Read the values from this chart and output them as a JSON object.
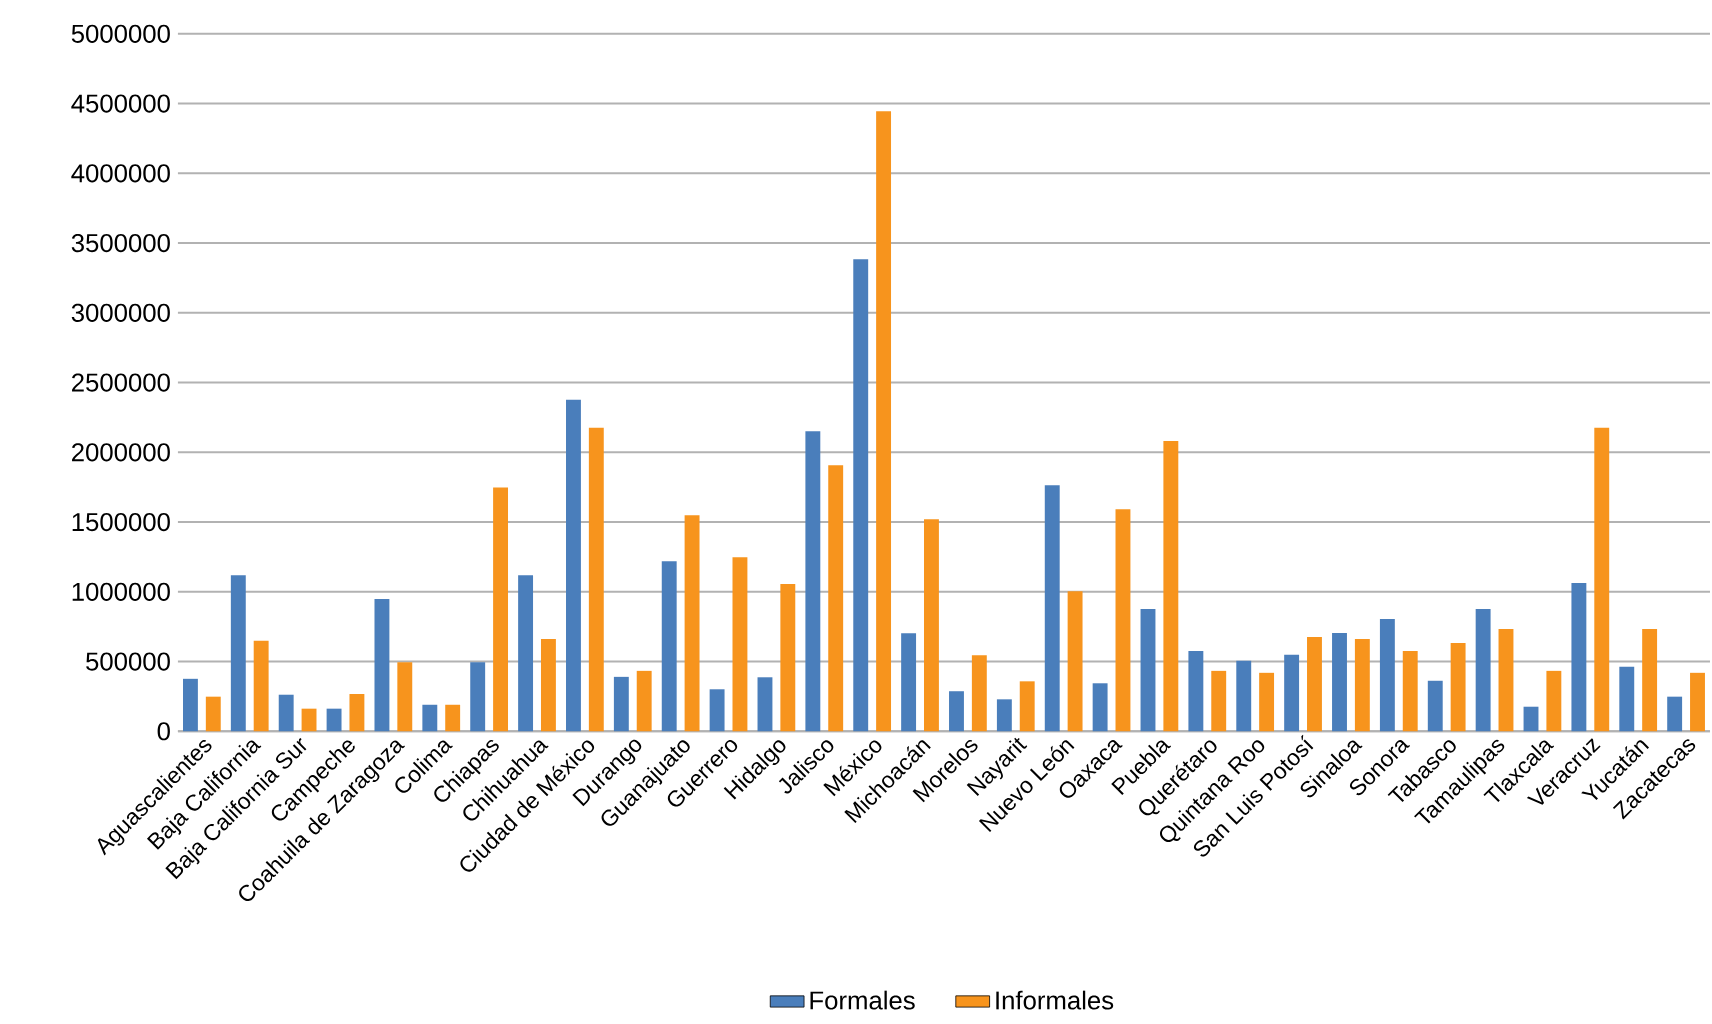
{
  "chart_data": {
    "type": "bar",
    "categories": [
      "Aguascalientes",
      "Baja California",
      "Baja California Sur",
      "Campeche",
      "Coahuila de Zaragoza",
      "Colima",
      "Chiapas",
      "Chihuahua",
      "Ciudad de México",
      "Durango",
      "Guanajuato",
      "Guerrero",
      "Hidalgo",
      "Jalisco",
      "México",
      "Michoacán",
      "Morelos",
      "Nayarit",
      "Nuevo León",
      "Oaxaca",
      "Puebla",
      "Querétaro",
      "Quintana Roo",
      "San Luis Potosí",
      "Sinaloa",
      "Sonora",
      "Tabasco",
      "Tamaulipas",
      "Tlaxcala",
      "Veracruz",
      "Yucatán",
      "Zacatecas"
    ],
    "series": [
      {
        "name": "Formales",
        "color": "#4a7ebb",
        "values": [
          376000,
          1119000,
          262000,
          162000,
          948000,
          190000,
          495000,
          1119000,
          2376000,
          390000,
          1219000,
          301000,
          387000,
          2151000,
          3384000,
          703000,
          287000,
          229000,
          1763000,
          344000,
          876000,
          576000,
          505000,
          548000,
          705000,
          805000,
          362000,
          876000,
          176000,
          1062000,
          462000,
          248000
        ]
      },
      {
        "name": "Informales",
        "color": "#f7941d",
        "values": [
          248000,
          648000,
          162000,
          267000,
          495000,
          190000,
          1748000,
          662000,
          2176000,
          433000,
          1548000,
          1247000,
          1056000,
          1907000,
          4444000,
          1520000,
          545000,
          358000,
          1004000,
          1591000,
          2080000,
          433000,
          419000,
          676000,
          662000,
          576000,
          633000,
          733000,
          433000,
          2176000,
          733000,
          419000
        ]
      }
    ],
    "ylim": [
      0,
      5000000
    ],
    "yticks": [
      0,
      500000,
      1000000,
      1500000,
      2000000,
      2500000,
      3000000,
      3500000,
      4000000,
      4500000,
      5000000
    ],
    "grid": "y",
    "legend": "bottom"
  }
}
